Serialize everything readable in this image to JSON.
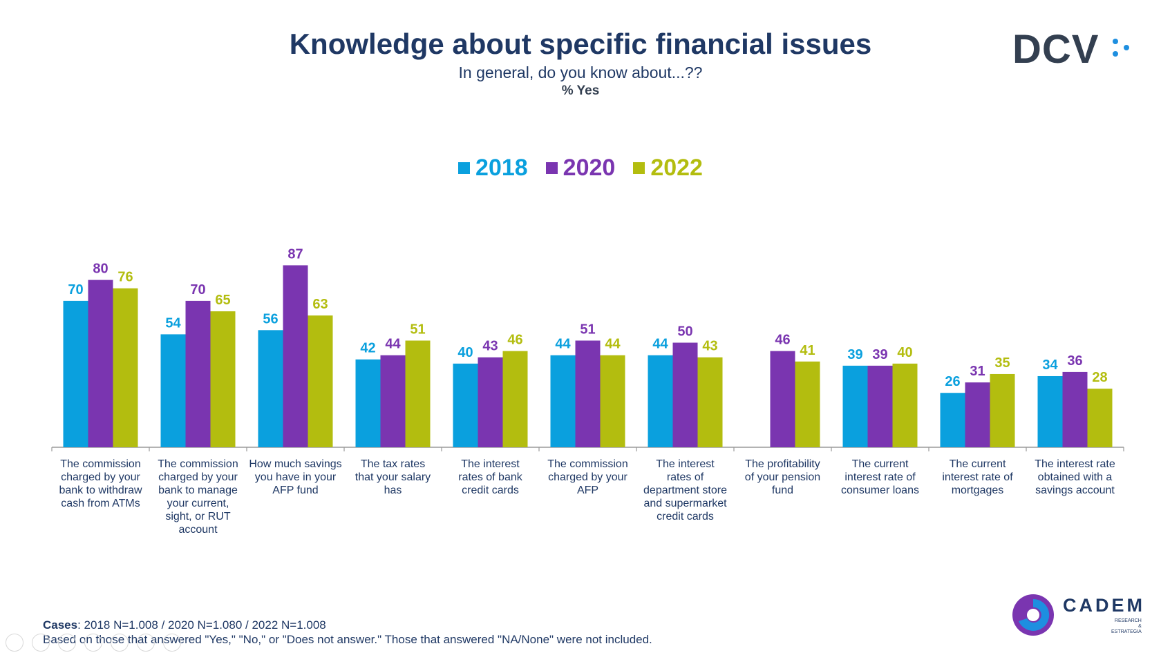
{
  "header": {
    "title": "Knowledge about specific financial issues",
    "subtitle": "In general, do you know about...??",
    "measure": "% Yes"
  },
  "logos": {
    "dcv": "DCV",
    "cadem": "CADEM",
    "cadem_tagline_1": "RESEARCH",
    "cadem_tagline_2": "& ESTRATEGIA"
  },
  "footer": {
    "cases_label": "Cases",
    "cases_text": ": 2018 N=1.008 / 2020 N=1.080 / 2022 N=1.008",
    "note": "Based on those that answered \"Yes,\" \"No,\" or \"Does not answer.\" Those that answered \"NA/None\" were not included."
  },
  "colors": {
    "s2018": "#0aa0de",
    "s2020": "#7a35b0",
    "s2022": "#b3bd0f",
    "title": "#1f3864"
  },
  "chart_data": {
    "type": "bar",
    "title": "Knowledge about specific financial issues",
    "legend_position": "top-center",
    "grid": false,
    "ylim": [
      0,
      100
    ],
    "categories": [
      "The commission charged by your bank to withdraw cash from ATMs",
      "The commission charged by your bank to manage your current, sight, or RUT account",
      "How much savings you have in your AFP fund",
      "The tax rates that your salary has",
      "The interest rates of bank credit cards",
      "The commission charged by your AFP",
      "The interest rates of department store and supermarket credit cards",
      "The profitability of your pension fund",
      "The current interest rate of consumer loans",
      "The current interest rate of mortgages",
      "The interest rate obtained with a savings account"
    ],
    "series": [
      {
        "name": "2018",
        "color": "#0aa0de",
        "values": [
          70,
          54,
          56,
          42,
          40,
          44,
          44,
          null,
          39,
          26,
          34
        ]
      },
      {
        "name": "2020",
        "color": "#7a35b0",
        "values": [
          80,
          70,
          87,
          44,
          43,
          51,
          50,
          46,
          39,
          31,
          36
        ]
      },
      {
        "name": "2022",
        "color": "#b3bd0f",
        "values": [
          76,
          65,
          63,
          51,
          46,
          44,
          43,
          41,
          40,
          35,
          28
        ]
      }
    ]
  }
}
